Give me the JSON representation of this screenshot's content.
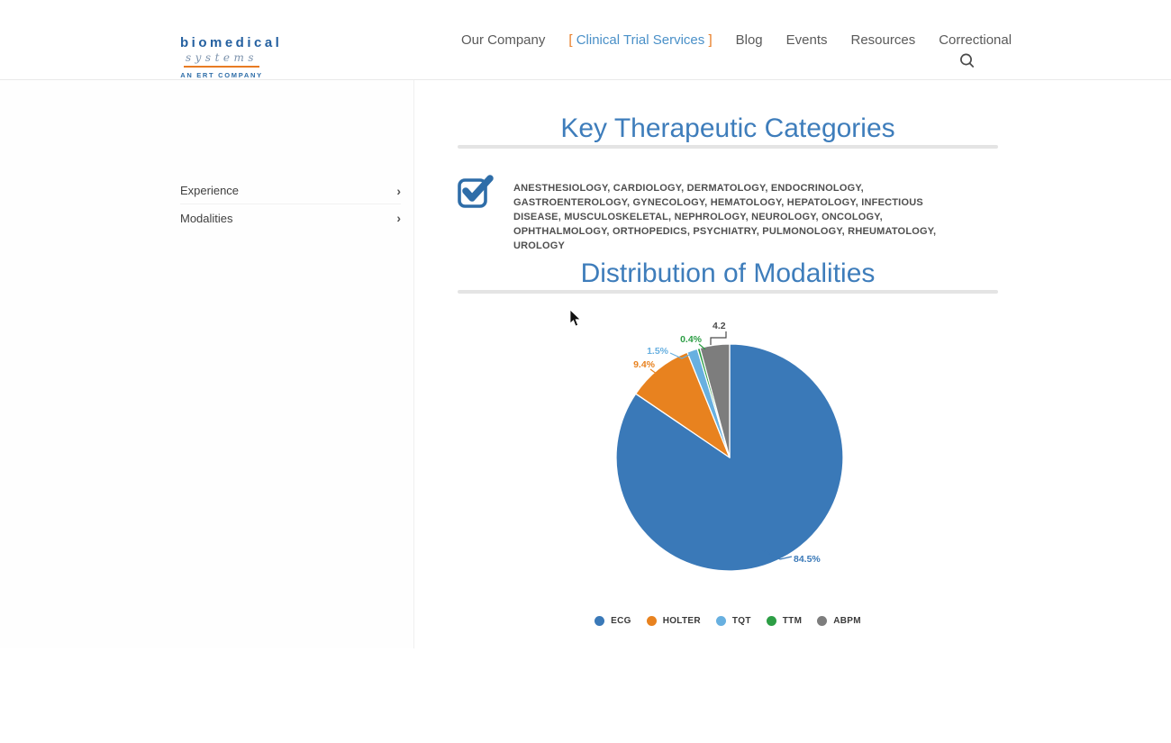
{
  "header": {
    "logo": {
      "name": "biomedical",
      "sub": "systems",
      "tagline": "AN ERT COMPANY"
    },
    "nav": {
      "items": [
        "Our Company",
        "Clinical Trial Services",
        "Blog",
        "Events",
        "Resources",
        "Correctional"
      ],
      "active_index": 1,
      "active_bracket_left": "[",
      "active_bracket_right": "]"
    },
    "icons": {
      "search": "magnifier"
    }
  },
  "sidebar": {
    "items": [
      {
        "label": "Experience"
      },
      {
        "label": "Modalities"
      }
    ],
    "chevron_icon": "›"
  },
  "main": {
    "section1_title": "Key Therapeutic Categories",
    "categories_icon": "checked-checkbox",
    "categories_text": "ANESTHESIOLOGY, CARDIOLOGY, DERMATOLOGY, ENDOCRINOLOGY, GASTROENTEROLOGY, GYNECOLOGY, HEMATOLOGY, HEPATOLOGY, INFECTIOUS DISEASE, MUSCULOSKELETAL, NEPHROLOGY, NEUROLOGY, ONCOLOGY, OPHTHALMOLOGY, ORTHOPEDICS, PSYCHIATRY, PULMONOLOGY, RHEUMATOLOGY, UROLOGY",
    "section2_title": "Distribution of Modalities"
  },
  "chart_data": {
    "type": "pie",
    "title": "Distribution of Modalities",
    "start_angle": "top",
    "direction": "clockwise",
    "legend_position": "bottom",
    "series": [
      {
        "name": "ECG",
        "value": 84.5,
        "label": "84.5%",
        "color": "#3a79b8",
        "label_color": "#3a79b8"
      },
      {
        "name": "HOLTER",
        "value": 9.4,
        "label": "9.4%",
        "color": "#e8821f",
        "label_color": "#e8821f"
      },
      {
        "name": "TQT",
        "value": 1.5,
        "label": "1.5%",
        "color": "#68b0e0",
        "label_color": "#68b0e0"
      },
      {
        "name": "TTM",
        "value": 0.4,
        "label": "0.4%",
        "color": "#2d9e45",
        "label_color": "#2d9e45"
      },
      {
        "name": "ABPM",
        "value": 4.2,
        "label": "4.2",
        "color": "#7d7d7d",
        "label_color": "#4a4a4a"
      }
    ]
  },
  "colors": {
    "accent_blue": "#3e7dbb",
    "accent_orange": "#e87b23",
    "nav_active_blue": "#4a90c8",
    "rule_gray": "#e4e4e4"
  }
}
